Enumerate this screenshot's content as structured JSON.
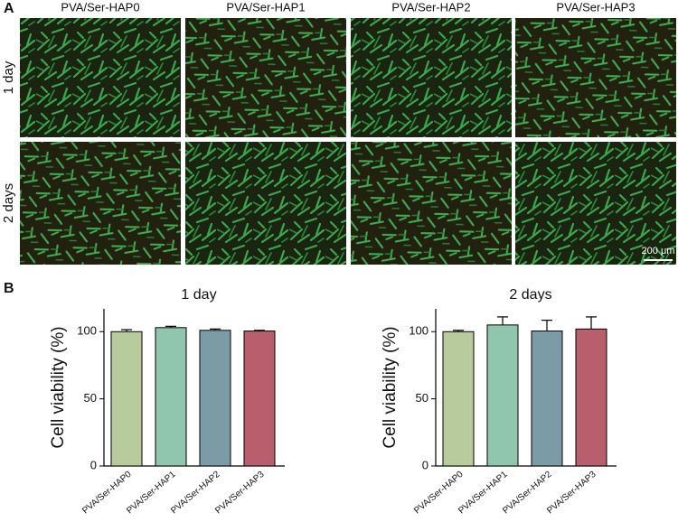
{
  "panel_a": {
    "label": "A",
    "columns": [
      "PVA/Ser-HAP0",
      "PVA/Ser-HAP1",
      "PVA/Ser-HAP2",
      "PVA/Ser-HAP3"
    ],
    "rows": [
      "1 day",
      "2 days"
    ],
    "scale_bar": "200 μm"
  },
  "panel_b": {
    "label": "B"
  },
  "chart_data": [
    {
      "type": "bar",
      "title": "1 day",
      "y_label": "Cell viability (%)",
      "categories": [
        "PVA/Ser-HAP0",
        "PVA/Ser-HAP1",
        "PVA/Ser-HAP2",
        "PVA/Ser-HAP3"
      ],
      "values": [
        100,
        103,
        101,
        100.5
      ],
      "errors": [
        1.5,
        1,
        1,
        0.5
      ],
      "colors": [
        "#b7cb9c",
        "#8fc6ad",
        "#7b9ba7",
        "#b95e6c"
      ],
      "ylim": [
        0,
        117
      ],
      "yticks": [
        0,
        50,
        100
      ]
    },
    {
      "type": "bar",
      "title": "2 days",
      "y_label": "Cell viability (%)",
      "categories": [
        "PVA/Ser-HAP0",
        "PVA/Ser-HAP1",
        "PVA/Ser-HAP2",
        "PVA/Ser-HAP3"
      ],
      "values": [
        100,
        105,
        100.5,
        102
      ],
      "errors": [
        1,
        6,
        8,
        9
      ],
      "colors": [
        "#b7cb9c",
        "#8fc6ad",
        "#7b9ba7",
        "#b95e6c"
      ],
      "ylim": [
        0,
        117
      ],
      "yticks": [
        0,
        50,
        100
      ]
    }
  ]
}
